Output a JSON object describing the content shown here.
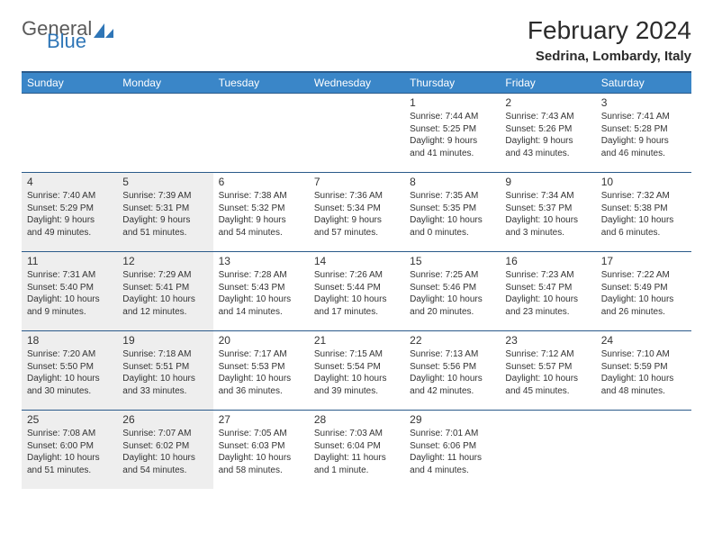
{
  "logo": {
    "text1": "General",
    "text2": "Blue"
  },
  "title": "February 2024",
  "subtitle": "Sedrina, Lombardy, Italy",
  "colors": {
    "header_bg": "#3a86c8",
    "header_border": "#2a5a8a",
    "shade_bg": "#eeeeee",
    "text": "#333333",
    "logo_gray": "#5a5a5a",
    "logo_blue": "#2f76b7"
  },
  "dayHeaders": [
    "Sunday",
    "Monday",
    "Tuesday",
    "Wednesday",
    "Thursday",
    "Friday",
    "Saturday"
  ],
  "weeks": [
    [
      {
        "empty": true,
        "shade": false
      },
      {
        "empty": true,
        "shade": false
      },
      {
        "empty": true,
        "shade": false
      },
      {
        "empty": true,
        "shade": false
      },
      {
        "day": "1",
        "shade": false,
        "sunrise": "Sunrise: 7:44 AM",
        "sunset": "Sunset: 5:25 PM",
        "daylight": "Daylight: 9 hours and 41 minutes."
      },
      {
        "day": "2",
        "shade": false,
        "sunrise": "Sunrise: 7:43 AM",
        "sunset": "Sunset: 5:26 PM",
        "daylight": "Daylight: 9 hours and 43 minutes."
      },
      {
        "day": "3",
        "shade": false,
        "sunrise": "Sunrise: 7:41 AM",
        "sunset": "Sunset: 5:28 PM",
        "daylight": "Daylight: 9 hours and 46 minutes."
      }
    ],
    [
      {
        "day": "4",
        "shade": true,
        "sunrise": "Sunrise: 7:40 AM",
        "sunset": "Sunset: 5:29 PM",
        "daylight": "Daylight: 9 hours and 49 minutes."
      },
      {
        "day": "5",
        "shade": true,
        "sunrise": "Sunrise: 7:39 AM",
        "sunset": "Sunset: 5:31 PM",
        "daylight": "Daylight: 9 hours and 51 minutes."
      },
      {
        "day": "6",
        "shade": false,
        "sunrise": "Sunrise: 7:38 AM",
        "sunset": "Sunset: 5:32 PM",
        "daylight": "Daylight: 9 hours and 54 minutes."
      },
      {
        "day": "7",
        "shade": false,
        "sunrise": "Sunrise: 7:36 AM",
        "sunset": "Sunset: 5:34 PM",
        "daylight": "Daylight: 9 hours and 57 minutes."
      },
      {
        "day": "8",
        "shade": false,
        "sunrise": "Sunrise: 7:35 AM",
        "sunset": "Sunset: 5:35 PM",
        "daylight": "Daylight: 10 hours and 0 minutes."
      },
      {
        "day": "9",
        "shade": false,
        "sunrise": "Sunrise: 7:34 AM",
        "sunset": "Sunset: 5:37 PM",
        "daylight": "Daylight: 10 hours and 3 minutes."
      },
      {
        "day": "10",
        "shade": false,
        "sunrise": "Sunrise: 7:32 AM",
        "sunset": "Sunset: 5:38 PM",
        "daylight": "Daylight: 10 hours and 6 minutes."
      }
    ],
    [
      {
        "day": "11",
        "shade": true,
        "sunrise": "Sunrise: 7:31 AM",
        "sunset": "Sunset: 5:40 PM",
        "daylight": "Daylight: 10 hours and 9 minutes."
      },
      {
        "day": "12",
        "shade": true,
        "sunrise": "Sunrise: 7:29 AM",
        "sunset": "Sunset: 5:41 PM",
        "daylight": "Daylight: 10 hours and 12 minutes."
      },
      {
        "day": "13",
        "shade": false,
        "sunrise": "Sunrise: 7:28 AM",
        "sunset": "Sunset: 5:43 PM",
        "daylight": "Daylight: 10 hours and 14 minutes."
      },
      {
        "day": "14",
        "shade": false,
        "sunrise": "Sunrise: 7:26 AM",
        "sunset": "Sunset: 5:44 PM",
        "daylight": "Daylight: 10 hours and 17 minutes."
      },
      {
        "day": "15",
        "shade": false,
        "sunrise": "Sunrise: 7:25 AM",
        "sunset": "Sunset: 5:46 PM",
        "daylight": "Daylight: 10 hours and 20 minutes."
      },
      {
        "day": "16",
        "shade": false,
        "sunrise": "Sunrise: 7:23 AM",
        "sunset": "Sunset: 5:47 PM",
        "daylight": "Daylight: 10 hours and 23 minutes."
      },
      {
        "day": "17",
        "shade": false,
        "sunrise": "Sunrise: 7:22 AM",
        "sunset": "Sunset: 5:49 PM",
        "daylight": "Daylight: 10 hours and 26 minutes."
      }
    ],
    [
      {
        "day": "18",
        "shade": true,
        "sunrise": "Sunrise: 7:20 AM",
        "sunset": "Sunset: 5:50 PM",
        "daylight": "Daylight: 10 hours and 30 minutes."
      },
      {
        "day": "19",
        "shade": true,
        "sunrise": "Sunrise: 7:18 AM",
        "sunset": "Sunset: 5:51 PM",
        "daylight": "Daylight: 10 hours and 33 minutes."
      },
      {
        "day": "20",
        "shade": false,
        "sunrise": "Sunrise: 7:17 AM",
        "sunset": "Sunset: 5:53 PM",
        "daylight": "Daylight: 10 hours and 36 minutes."
      },
      {
        "day": "21",
        "shade": false,
        "sunrise": "Sunrise: 7:15 AM",
        "sunset": "Sunset: 5:54 PM",
        "daylight": "Daylight: 10 hours and 39 minutes."
      },
      {
        "day": "22",
        "shade": false,
        "sunrise": "Sunrise: 7:13 AM",
        "sunset": "Sunset: 5:56 PM",
        "daylight": "Daylight: 10 hours and 42 minutes."
      },
      {
        "day": "23",
        "shade": false,
        "sunrise": "Sunrise: 7:12 AM",
        "sunset": "Sunset: 5:57 PM",
        "daylight": "Daylight: 10 hours and 45 minutes."
      },
      {
        "day": "24",
        "shade": false,
        "sunrise": "Sunrise: 7:10 AM",
        "sunset": "Sunset: 5:59 PM",
        "daylight": "Daylight: 10 hours and 48 minutes."
      }
    ],
    [
      {
        "day": "25",
        "shade": true,
        "sunrise": "Sunrise: 7:08 AM",
        "sunset": "Sunset: 6:00 PM",
        "daylight": "Daylight: 10 hours and 51 minutes."
      },
      {
        "day": "26",
        "shade": true,
        "sunrise": "Sunrise: 7:07 AM",
        "sunset": "Sunset: 6:02 PM",
        "daylight": "Daylight: 10 hours and 54 minutes."
      },
      {
        "day": "27",
        "shade": false,
        "sunrise": "Sunrise: 7:05 AM",
        "sunset": "Sunset: 6:03 PM",
        "daylight": "Daylight: 10 hours and 58 minutes."
      },
      {
        "day": "28",
        "shade": false,
        "sunrise": "Sunrise: 7:03 AM",
        "sunset": "Sunset: 6:04 PM",
        "daylight": "Daylight: 11 hours and 1 minute."
      },
      {
        "day": "29",
        "shade": false,
        "sunrise": "Sunrise: 7:01 AM",
        "sunset": "Sunset: 6:06 PM",
        "daylight": "Daylight: 11 hours and 4 minutes."
      },
      {
        "empty": true,
        "shade": false
      },
      {
        "empty": true,
        "shade": false
      }
    ]
  ]
}
